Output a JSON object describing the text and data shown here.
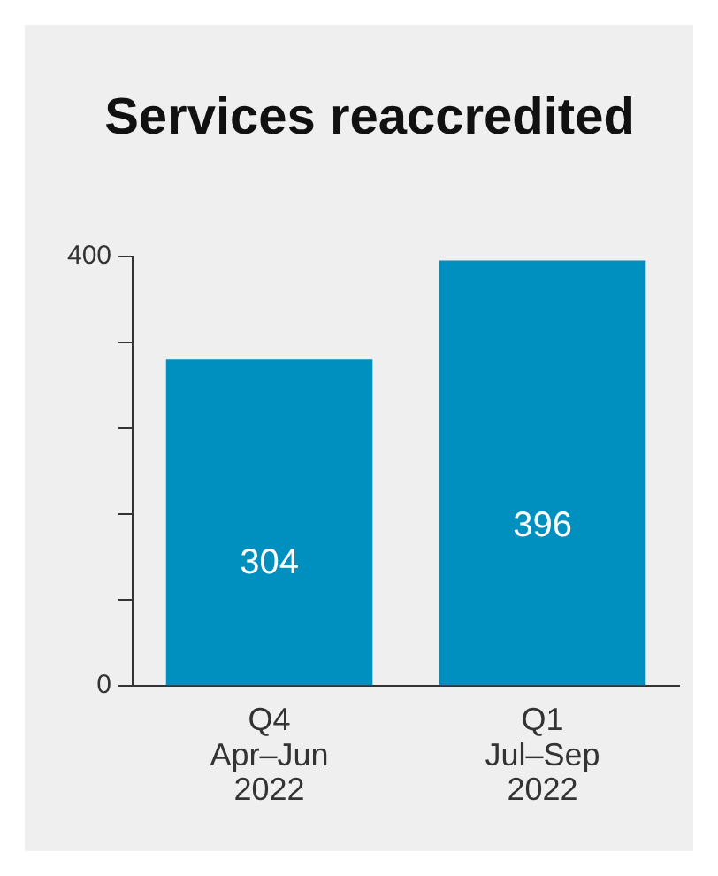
{
  "chart_data": {
    "type": "bar",
    "title": "Services reaccredited",
    "categories": [
      "Q4\nApr–Jun\n2022",
      "Q1\nJul–Sep\n2022"
    ],
    "values": [
      304,
      396
    ],
    "color": "#0090bf",
    "ylim": [
      0,
      400
    ],
    "yticks": [
      0,
      {
        "value": 80,
        "label": null
      },
      {
        "value": 160,
        "label": null
      },
      {
        "value": 240,
        "label": null
      },
      {
        "value": 320,
        "label": null
      },
      400
    ],
    "grid": false,
    "data_labels": true,
    "legend": false
  }
}
